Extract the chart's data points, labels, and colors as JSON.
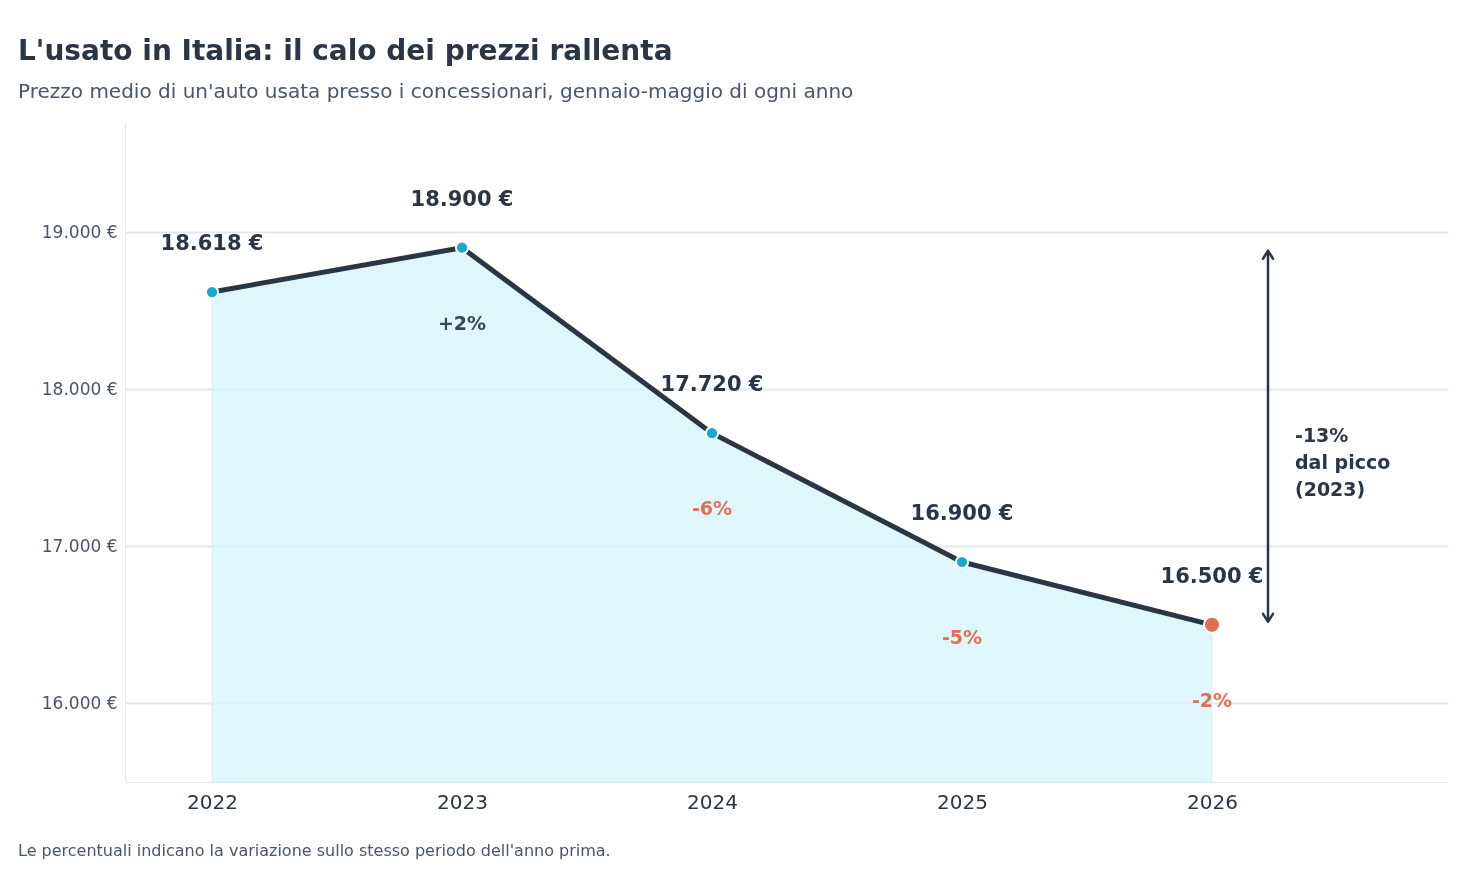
{
  "chart_data": {
    "type": "area",
    "title": "L'usato in Italia: il calo dei prezzi rallenta",
    "subtitle": "Prezzo medio di un'auto usata presso i concessionari, gennaio-maggio di ogni anno",
    "categories": [
      "2022",
      "2023",
      "2024",
      "2025",
      "2026"
    ],
    "series": [
      {
        "color": "#2b3644",
        "values": [
          18618,
          18900,
          17720,
          16900,
          16500
        ]
      }
    ],
    "colors": [
      "#1ba8d0",
      "#1ba8d0",
      "#1ba8d0",
      "#1ba8d0",
      "#e07050"
    ],
    "value_labels": [
      "18.618 €",
      "18.900 €",
      "17.720 €",
      "16.900 €",
      "16.500 €"
    ],
    "ylim": [
      15500,
      19700
    ],
    "yticks": [
      {
        "value": 16000,
        "label": "16.000 €"
      },
      {
        "value": 17000,
        "label": "17.000 €"
      },
      {
        "value": 18000,
        "label": "18.000 €"
      },
      {
        "value": 19000,
        "label": "19.000 €"
      }
    ],
    "annotations": [
      "+2%",
      "-6%",
      "-5%",
      "-2%",
      "-13%\ndal picco\n(2023)",
      "Le percentuali indicano la variazione sullo stesso periodo dell'anno prima."
    ],
    "grid": "y",
    "marker": "circle",
    "line_style": "solid"
  }
}
